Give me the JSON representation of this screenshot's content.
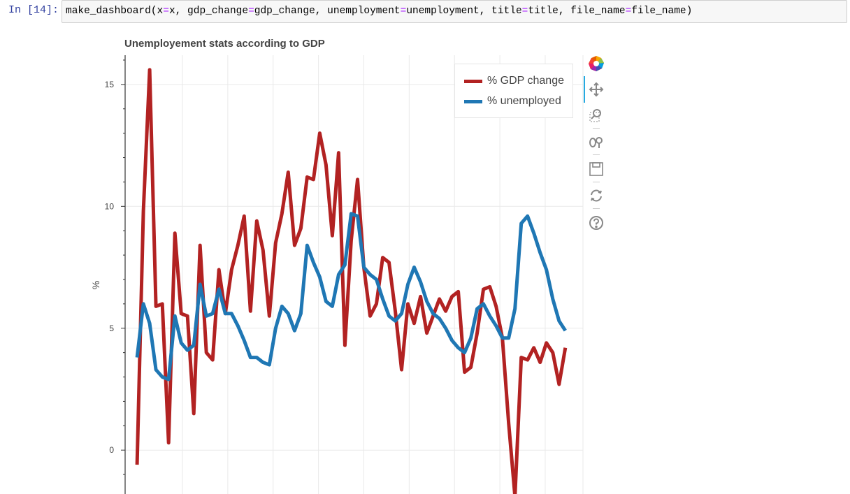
{
  "notebook": {
    "prompt": "In [14]:",
    "code": [
      {
        "t": "make_dashboard(x",
        "eq": false
      },
      {
        "t": "=",
        "eq": true
      },
      {
        "t": "x, gdp_change",
        "eq": false
      },
      {
        "t": "=",
        "eq": true
      },
      {
        "t": "gdp_change, unemployment",
        "eq": false
      },
      {
        "t": "=",
        "eq": true
      },
      {
        "t": "unemployment, title",
        "eq": false
      },
      {
        "t": "=",
        "eq": true
      },
      {
        "t": "title, file_name",
        "eq": false
      },
      {
        "t": "=",
        "eq": true
      },
      {
        "t": "file_name)",
        "eq": false
      }
    ]
  },
  "toolbar": {
    "tools": [
      {
        "icon": "bokeh-logo-icon",
        "label": "Bokeh"
      },
      {
        "icon": "pan-icon",
        "label": "Pan",
        "active": true
      },
      {
        "icon": "box-zoom-icon",
        "label": "Box Zoom"
      },
      {
        "icon": "wheel-zoom-icon",
        "label": "Wheel Zoom"
      },
      {
        "icon": "save-icon",
        "label": "Save"
      },
      {
        "icon": "reset-icon",
        "label": "Reset"
      },
      {
        "icon": "help-icon",
        "label": "Help"
      }
    ]
  },
  "chart_data": {
    "type": "line",
    "title": "Unemployement stats according to GDP",
    "xlabel": "",
    "ylabel": "%",
    "ylim": [
      -1.8,
      16.2
    ],
    "yticks": [
      0,
      5,
      10,
      15
    ],
    "grid": true,
    "legend_position": "top-right",
    "x": [
      0,
      1,
      2,
      3,
      4,
      5,
      6,
      7,
      8,
      9,
      10,
      11,
      12,
      13,
      14,
      15,
      16,
      17,
      18,
      19,
      20,
      21,
      22,
      23,
      24,
      25,
      26,
      27,
      28,
      29,
      30,
      31,
      32,
      33,
      34,
      35,
      36,
      37,
      38,
      39,
      40,
      41,
      42,
      43,
      44,
      45,
      46,
      47,
      48,
      49,
      50,
      51,
      52,
      53,
      54,
      55,
      56,
      57,
      58,
      59,
      60,
      61,
      62,
      63,
      64,
      65,
      66,
      67,
      68,
      69,
      70,
      71
    ],
    "series": [
      {
        "name": "% GDP change",
        "color": "#b22222",
        "values": [
          -0.6,
          9.8,
          15.6,
          5.9,
          6.0,
          0.3,
          8.9,
          5.6,
          5.5,
          1.5,
          8.4,
          4.0,
          3.7,
          7.4,
          5.6,
          7.4,
          8.4,
          9.6,
          5.7,
          9.4,
          8.2,
          5.5,
          8.5,
          9.7,
          11.4,
          8.4,
          9.1,
          11.2,
          11.1,
          13.0,
          11.7,
          8.8,
          12.2,
          4.3,
          8.6,
          11.1,
          7.5,
          5.5,
          6.0,
          7.9,
          7.7,
          5.7,
          3.3,
          6.0,
          5.2,
          6.3,
          4.8,
          5.5,
          6.2,
          5.7,
          6.3,
          6.5,
          3.2,
          3.4,
          4.8,
          6.6,
          6.7,
          5.9,
          4.6,
          1.1,
          -1.9,
          3.8,
          3.7,
          4.2,
          3.6,
          4.4,
          4.0,
          2.7,
          4.2
        ],
        "x": [
          0,
          1,
          2,
          3,
          4,
          5,
          6,
          7,
          8,
          9,
          10,
          11,
          12,
          13,
          14,
          15,
          16,
          17,
          18,
          19,
          20,
          21,
          22,
          23,
          24,
          25,
          26,
          27,
          28,
          29,
          30,
          31,
          32,
          33,
          34,
          35,
          36,
          37,
          38,
          39,
          40,
          41,
          42,
          43,
          44,
          45,
          46,
          47,
          48,
          49,
          50,
          51,
          52,
          53,
          54,
          55,
          56,
          57,
          58,
          59,
          60,
          61,
          62,
          63,
          64,
          65,
          66,
          67,
          68
        ]
      },
      {
        "name": "% unemployed",
        "color": "#1f77b4",
        "values": [
          3.8,
          6.0,
          5.2,
          3.3,
          3.0,
          2.9,
          5.5,
          4.4,
          4.1,
          4.3,
          6.8,
          5.5,
          5.6,
          6.6,
          5.6,
          5.6,
          5.1,
          4.5,
          3.8,
          3.8,
          3.6,
          3.5,
          5.0,
          5.9,
          5.6,
          4.9,
          5.6,
          8.4,
          7.7,
          7.1,
          6.1,
          5.9,
          7.2,
          7.6,
          9.7,
          9.6,
          7.5,
          7.2,
          7.0,
          6.2,
          5.5,
          5.3,
          5.6,
          6.8,
          7.5,
          6.9,
          6.1,
          5.6,
          5.4,
          5.0,
          4.5,
          4.2,
          4.0,
          4.6,
          5.8,
          6.0,
          5.5,
          5.1,
          4.6,
          4.6,
          5.8,
          9.3,
          9.6,
          8.9,
          8.1,
          7.4,
          6.2,
          5.3,
          4.9
        ],
        "x": [
          0,
          1,
          2,
          3,
          4,
          5,
          6,
          7,
          8,
          9,
          10,
          11,
          12,
          13,
          14,
          15,
          16,
          17,
          18,
          19,
          20,
          21,
          22,
          23,
          24,
          25,
          26,
          27,
          28,
          29,
          30,
          31,
          32,
          33,
          34,
          35,
          36,
          37,
          38,
          39,
          40,
          41,
          42,
          43,
          44,
          45,
          46,
          47,
          48,
          49,
          50,
          51,
          52,
          53,
          54,
          55,
          56,
          57,
          58,
          59,
          60,
          61,
          62,
          63,
          64,
          65,
          66,
          67,
          68
        ]
      }
    ]
  }
}
